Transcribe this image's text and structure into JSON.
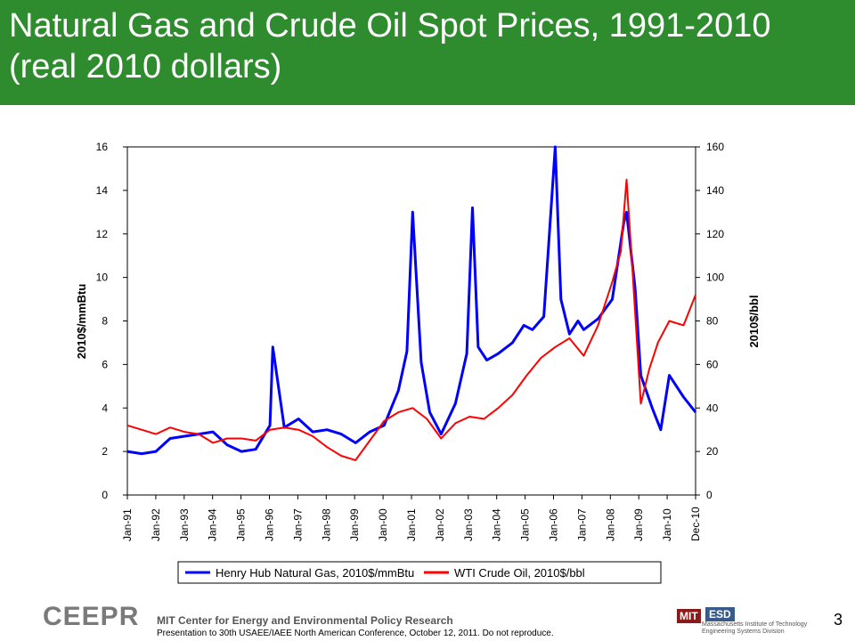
{
  "header": {
    "title": "Natural Gas and Crude Oil Spot Prices, 1991-2010 (real 2010 dollars)"
  },
  "chart_data": {
    "type": "line",
    "ylabel_left": "2010$/mmBtu",
    "ylabel_right": "2010$/bbl",
    "ylim_left": [
      0,
      16
    ],
    "ylim_right": [
      0,
      160
    ],
    "yticks_left": [
      "0",
      "2",
      "4",
      "6",
      "8",
      "10",
      "12",
      "14",
      "16"
    ],
    "yticks_right": [
      "0",
      "20",
      "40",
      "60",
      "80",
      "100",
      "120",
      "140",
      "160"
    ],
    "xticks": [
      "Jan-91",
      "Jan-92",
      "Jan-93",
      "Jan-94",
      "Jan-95",
      "Jan-96",
      "Jan-97",
      "Jan-98",
      "Jan-99",
      "Jan-00",
      "Jan-01",
      "Jan-02",
      "Jan-03",
      "Jan-04",
      "Jan-05",
      "Jan-06",
      "Jan-07",
      "Jan-08",
      "Jan-09",
      "Jan-10",
      "Dec-10"
    ],
    "grid": false,
    "legend_position": "bottom",
    "series": [
      {
        "name": "Henry Hub Natural Gas, 2010$/mmBtu",
        "color": "#0000ff",
        "axis": "left",
        "x": [
          1991.0,
          1991.5,
          1992.0,
          1992.5,
          1993.0,
          1993.5,
          1994.0,
          1994.5,
          1995.0,
          1995.5,
          1996.0,
          1996.1,
          1996.5,
          1997.0,
          1997.5,
          1998.0,
          1998.5,
          1999.0,
          1999.5,
          2000.0,
          2000.5,
          2000.8,
          2001.0,
          2001.3,
          2001.6,
          2002.0,
          2002.5,
          2002.9,
          2003.1,
          2003.3,
          2003.6,
          2004.0,
          2004.5,
          2004.9,
          2005.2,
          2005.6,
          2005.8,
          2006.0,
          2006.2,
          2006.5,
          2006.8,
          2007.0,
          2007.5,
          2008.0,
          2008.4,
          2008.5,
          2008.8,
          2009.0,
          2009.4,
          2009.7,
          2010.0,
          2010.5,
          2010.92
        ],
        "values": [
          2.0,
          1.9,
          2.0,
          2.6,
          2.7,
          2.8,
          2.9,
          2.3,
          2.0,
          2.1,
          3.2,
          6.8,
          3.1,
          3.5,
          2.9,
          3.0,
          2.8,
          2.4,
          2.9,
          3.2,
          4.8,
          6.6,
          13.0,
          6.1,
          3.8,
          2.8,
          4.2,
          6.5,
          13.2,
          6.8,
          6.2,
          6.5,
          7.0,
          7.8,
          7.6,
          8.2,
          12.1,
          16.0,
          9.0,
          7.4,
          8.0,
          7.6,
          8.1,
          9.0,
          12.5,
          13.0,
          9.5,
          5.5,
          4.0,
          3.0,
          5.5,
          4.5,
          3.8
        ]
      },
      {
        "name": "WTI Crude Oil, 2010$/bbl",
        "color": "#ff0000",
        "axis": "right",
        "x": [
          1991.0,
          1991.5,
          1992.0,
          1992.5,
          1993.0,
          1993.5,
          1994.0,
          1994.5,
          1995.0,
          1995.5,
          1996.0,
          1996.5,
          1997.0,
          1997.5,
          1998.0,
          1998.5,
          1999.0,
          1999.5,
          2000.0,
          2000.5,
          2001.0,
          2001.5,
          2002.0,
          2002.5,
          2003.0,
          2003.5,
          2004.0,
          2004.5,
          2005.0,
          2005.5,
          2006.0,
          2006.5,
          2007.0,
          2007.5,
          2008.0,
          2008.3,
          2008.5,
          2008.7,
          2009.0,
          2009.3,
          2009.6,
          2010.0,
          2010.5,
          2010.92
        ],
        "values": [
          32,
          30,
          28,
          31,
          29,
          28,
          24,
          26,
          26,
          25,
          30,
          31,
          30,
          27,
          22,
          18,
          16,
          25,
          34,
          38,
          40,
          35,
          26,
          33,
          36,
          35,
          40,
          46,
          55,
          63,
          68,
          72,
          64,
          78,
          98,
          112,
          145,
          105,
          42,
          58,
          70,
          80,
          78,
          92
        ]
      }
    ]
  },
  "footer": {
    "logo_text": "CEEPR",
    "center_name": "MIT Center for Energy and Environmental Policy Research",
    "note": "Presentation to 30th USAEE/IAEE North American Conference, October 12, 2011.  Do not reproduce.",
    "mit_label": "MIT",
    "esd_label": "ESD",
    "mit_name": "Massachusetts Institute of Technology Engineering Systems Division",
    "page_number": "3"
  }
}
